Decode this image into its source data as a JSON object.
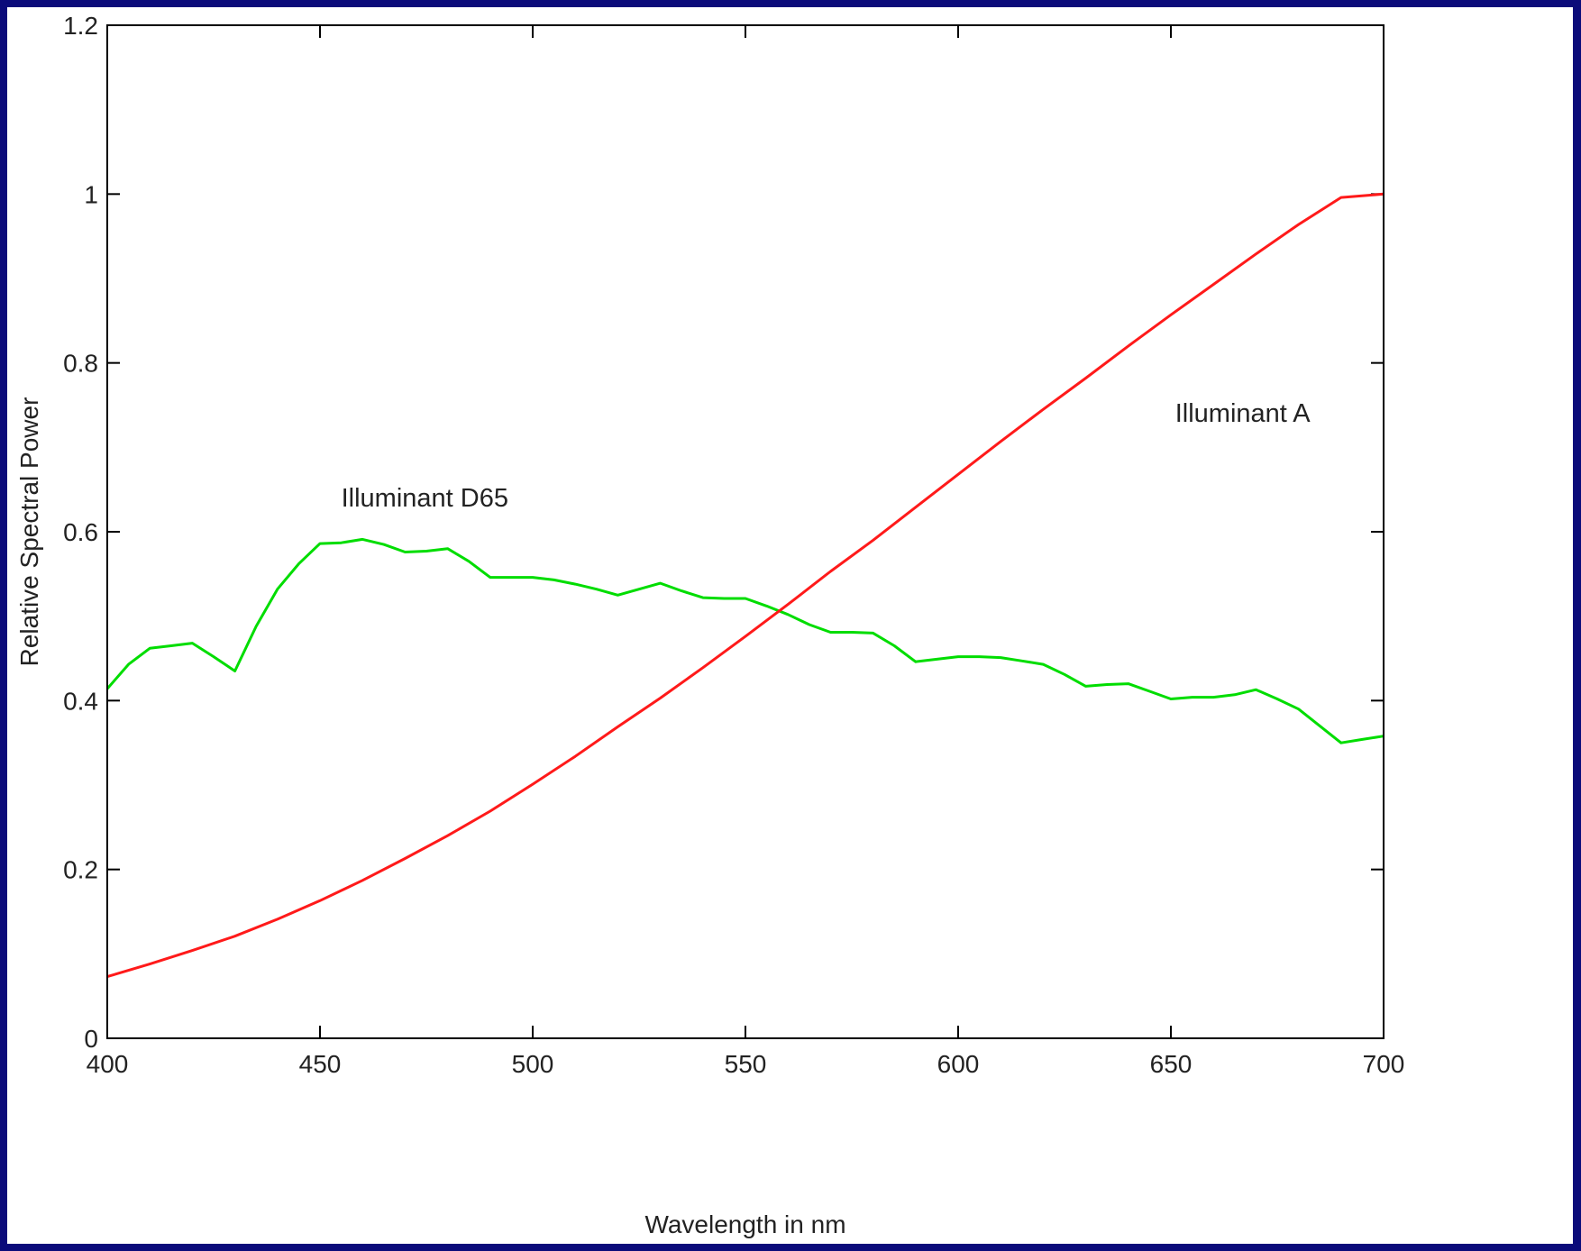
{
  "chart_data": {
    "type": "line",
    "title": "",
    "xlabel": "Wavelength in nm",
    "ylabel": "Relative Spectral Power",
    "xlim": [
      400,
      700
    ],
    "ylim": [
      0,
      1.2
    ],
    "x_ticks": [
      400,
      450,
      500,
      550,
      600,
      650,
      700
    ],
    "y_ticks": [
      0,
      0.2,
      0.4,
      0.6,
      0.8,
      1,
      1.2
    ],
    "x_tick_labels": [
      "400",
      "450",
      "500",
      "550",
      "600",
      "650",
      "700"
    ],
    "y_tick_labels": [
      "0",
      "0.2",
      "0.4",
      "0.6",
      "0.8",
      "1",
      "1.2"
    ],
    "grid": false,
    "legend": "none",
    "annotations": [
      {
        "text": "Illuminant D65",
        "x": 455,
        "y": 0.63
      },
      {
        "text": "Illuminant A",
        "x": 651,
        "y": 0.73
      }
    ],
    "series": [
      {
        "color": "#00dd00",
        "x": [
          400,
          405,
          410,
          415,
          420,
          425,
          430,
          435,
          440,
          445,
          450,
          455,
          460,
          465,
          470,
          475,
          480,
          485,
          490,
          495,
          500,
          505,
          510,
          515,
          520,
          525,
          530,
          535,
          540,
          545,
          550,
          555,
          560,
          565,
          570,
          575,
          580,
          585,
          590,
          595,
          600,
          605,
          610,
          615,
          620,
          625,
          630,
          635,
          640,
          645,
          650,
          655,
          660,
          665,
          670,
          675,
          680,
          685,
          690,
          695,
          700
        ],
        "values": [
          0.414,
          0.443,
          0.462,
          0.465,
          0.468,
          0.452,
          0.435,
          0.488,
          0.532,
          0.562,
          0.586,
          0.587,
          0.591,
          0.585,
          0.576,
          0.577,
          0.58,
          0.565,
          0.546,
          0.546,
          0.546,
          0.543,
          0.538,
          0.532,
          0.525,
          0.532,
          0.539,
          0.53,
          0.522,
          0.521,
          0.521,
          0.512,
          0.502,
          0.49,
          0.481,
          0.481,
          0.48,
          0.465,
          0.446,
          0.449,
          0.452,
          0.452,
          0.451,
          0.447,
          0.443,
          0.431,
          0.417,
          0.419,
          0.42,
          0.411,
          0.402,
          0.404,
          0.404,
          0.407,
          0.413,
          0.402,
          0.39,
          0.37,
          0.35,
          0.354,
          0.358
        ]
      },
      {
        "color": "#ff1a1a",
        "x": [
          400,
          410,
          420,
          430,
          440,
          450,
          460,
          470,
          480,
          490,
          500,
          510,
          520,
          530,
          540,
          550,
          560,
          570,
          580,
          590,
          600,
          610,
          620,
          630,
          640,
          650,
          660,
          670,
          680,
          690,
          700
        ],
        "values": [
          0.073,
          0.088,
          0.104,
          0.121,
          0.141,
          0.163,
          0.187,
          0.213,
          0.24,
          0.269,
          0.301,
          0.334,
          0.369,
          0.403,
          0.439,
          0.476,
          0.514,
          0.553,
          0.59,
          0.629,
          0.668,
          0.707,
          0.745,
          0.782,
          0.82,
          0.857,
          0.893,
          0.929,
          0.964,
          0.996,
          1.0
        ]
      }
    ]
  }
}
